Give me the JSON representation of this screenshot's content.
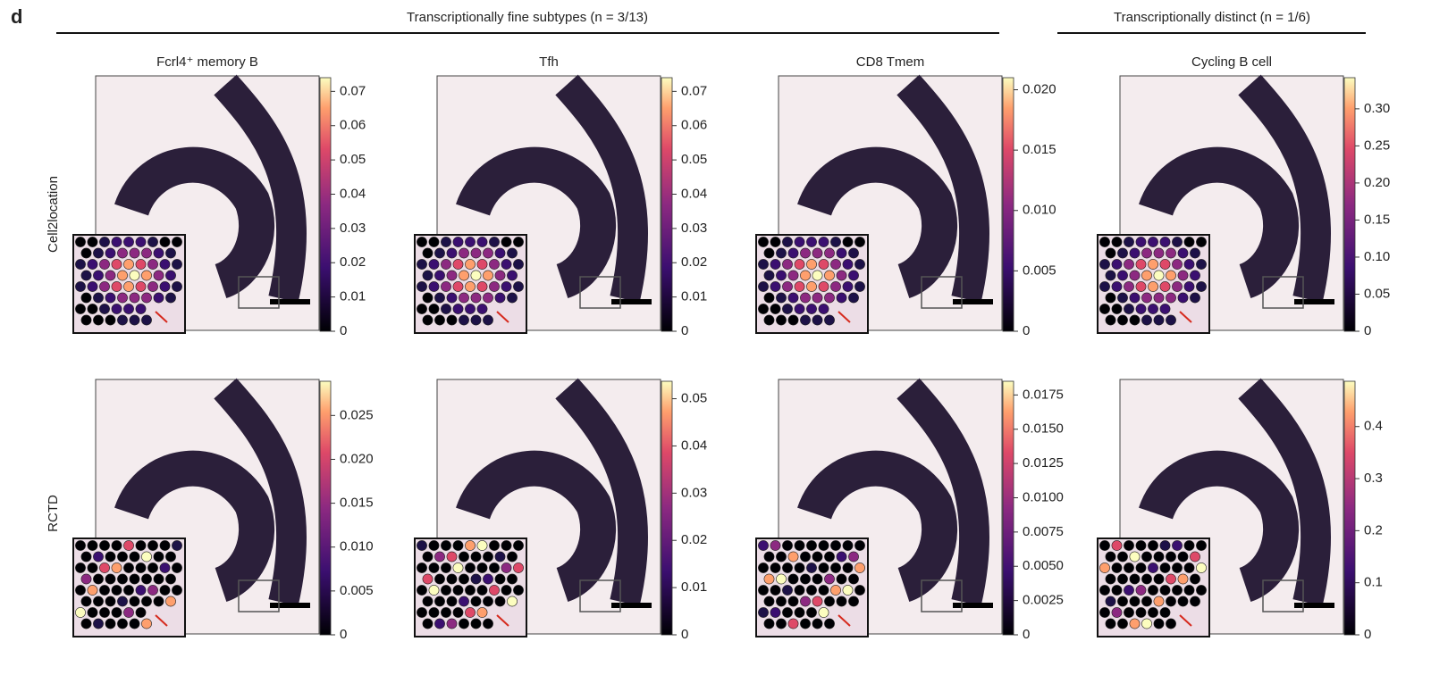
{
  "panel_label": "d",
  "groups": [
    {
      "title": "Transcriptionally fine subtypes (n = 3/13)"
    },
    {
      "title": "Transcriptionally distinct (n = 1/6)"
    }
  ],
  "rows": [
    "Cell2location",
    "RCTD"
  ],
  "columns": [
    {
      "title": "Fcrl4⁺ memory B",
      "colorbars": [
        {
          "lim": [
            0,
            0.074
          ],
          "ticks": [
            0,
            0.01,
            0.02,
            0.03,
            0.04,
            0.05,
            0.06,
            0.07
          ]
        },
        {
          "lim": [
            0,
            0.0289
          ],
          "ticks": [
            0,
            0.005,
            {
              "value": 0.01,
              "label": "0.010"
            },
            0.015,
            {
              "value": 0.02,
              "label": "0.020"
            },
            0.025
          ]
        }
      ]
    },
    {
      "title": "Tfh",
      "colorbars": [
        {
          "lim": [
            0,
            0.074
          ],
          "ticks": [
            0,
            0.01,
            0.02,
            0.03,
            0.04,
            0.05,
            0.06,
            0.07
          ]
        },
        {
          "lim": [
            0,
            0.0537
          ],
          "ticks": [
            0,
            0.01,
            0.02,
            0.03,
            0.04,
            0.05
          ]
        }
      ]
    },
    {
      "title": "CD8 Tmem",
      "colorbars": [
        {
          "lim": [
            0,
            0.021
          ],
          "ticks": [
            0,
            0.005,
            {
              "value": 0.01,
              "label": "0.010"
            },
            0.015,
            {
              "value": 0.02,
              "label": "0.020"
            }
          ]
        },
        {
          "lim": [
            0,
            0.0185
          ],
          "ticks": [
            0,
            0.0025,
            {
              "value": 0.005,
              "label": "0.0050"
            },
            0.0075,
            {
              "value": 0.01,
              "label": "0.0100"
            },
            0.0125,
            {
              "value": 0.015,
              "label": "0.0150"
            },
            0.0175
          ]
        }
      ]
    },
    {
      "title": "Cycling B cell",
      "colorbars": [
        {
          "lim": [
            0,
            0.342
          ],
          "ticks": [
            0,
            0.05,
            {
              "value": 0.1,
              "label": "0.10"
            },
            0.15,
            {
              "value": 0.2,
              "label": "0.20"
            },
            0.25,
            {
              "value": 0.3,
              "label": "0.30"
            }
          ]
        },
        {
          "lim": [
            0,
            0.487
          ],
          "ticks": [
            0,
            0.1,
            0.2,
            0.3,
            0.4
          ]
        }
      ]
    }
  ]
}
